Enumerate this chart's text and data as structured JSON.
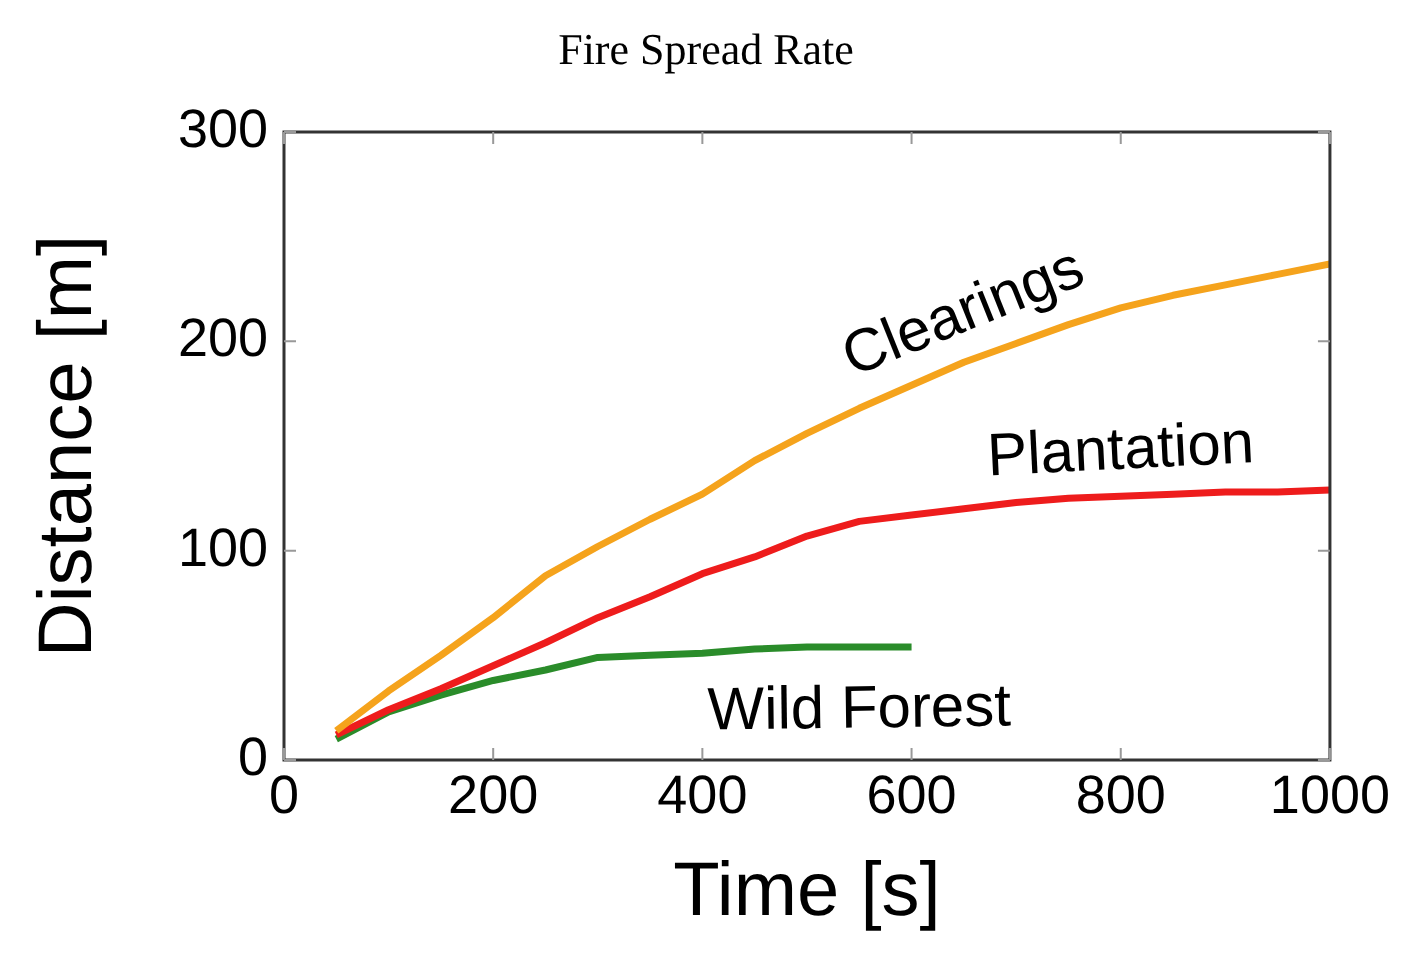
{
  "chart_data": {
    "type": "line",
    "title": "Fire Spread Rate",
    "xlabel": "Time [s]",
    "ylabel": "Distance [m]",
    "xlim": [
      0,
      1000
    ],
    "xticks": [
      0,
      200,
      400,
      600,
      800,
      1000
    ],
    "ylim": [
      0,
      300
    ],
    "yticks": [
      0,
      100,
      200,
      300
    ],
    "grid": false,
    "legend": false,
    "marker": "none",
    "line_style": "solid",
    "series": [
      {
        "name": "Clearings",
        "color": "#f5a31c",
        "x": [
          50,
          100,
          150,
          200,
          250,
          300,
          350,
          400,
          450,
          500,
          550,
          600,
          650,
          700,
          750,
          800,
          850,
          900,
          950,
          1000
        ],
        "values": [
          14,
          33,
          50,
          68,
          88,
          102,
          115,
          127,
          143,
          156,
          168,
          179,
          190,
          199,
          208,
          216,
          222,
          227,
          232,
          237
        ]
      },
      {
        "name": "Plantation",
        "color": "#ee1c1c",
        "x": [
          50,
          100,
          150,
          200,
          250,
          300,
          350,
          400,
          450,
          500,
          550,
          600,
          650,
          700,
          750,
          800,
          850,
          900,
          950,
          1000
        ],
        "values": [
          12,
          24,
          34,
          45,
          56,
          68,
          78,
          89,
          97,
          107,
          114,
          117,
          120,
          123,
          125,
          126,
          127,
          128,
          128,
          129
        ]
      },
      {
        "name": "Wild Forest",
        "color": "#2a8c2a",
        "x": [
          50,
          100,
          150,
          200,
          250,
          300,
          350,
          400,
          450,
          500,
          550,
          600
        ],
        "values": [
          10,
          23,
          31,
          38,
          43,
          49,
          50,
          51,
          53,
          54,
          54,
          54
        ]
      }
    ]
  }
}
